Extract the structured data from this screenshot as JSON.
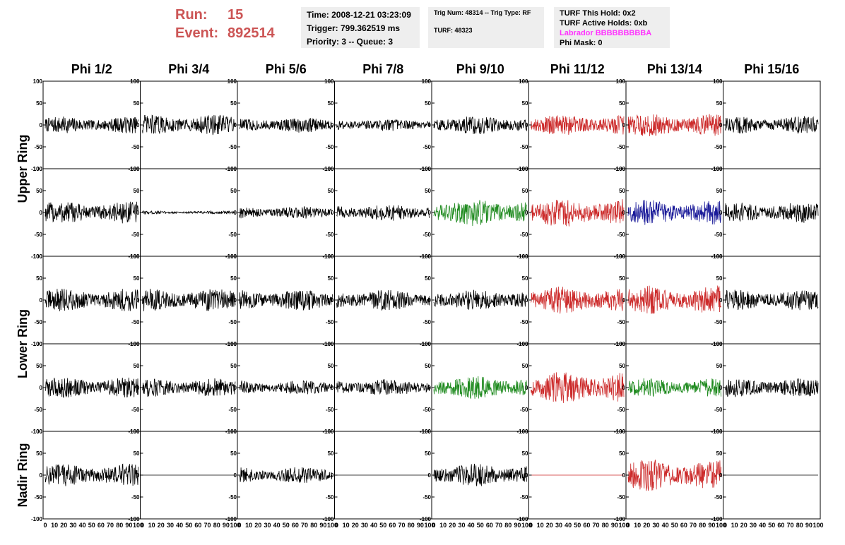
{
  "header": {
    "run_label": "Run:",
    "run_value": "15",
    "event_label": "Event:",
    "event_value": "892514",
    "time": "Time: 2008-12-21 03:23:09",
    "trigger": "Trigger: 799.362519 ms",
    "priority": "Priority: 3 -- Queue: 3",
    "trig_num": "Trig Num: 48314 -- Trig Type: RF",
    "turf": "TURF: 48323",
    "turf_this_hold": "TURF This Hold: 0x2",
    "turf_active_holds": "TURF Active Holds: 0xb",
    "labrador": "Labrador BBBBBBBBBA",
    "phi_mask": "Phi Mask: 0"
  },
  "chart_data": {
    "type": "line",
    "title": "",
    "columns": [
      "Phi 1/2",
      "Phi 3/4",
      "Phi 5/6",
      "Phi 7/8",
      "Phi 9/10",
      "Phi 11/12",
      "Phi 13/14",
      "Phi 15/16"
    ],
    "ring_labels": [
      {
        "text": "Upper Ring",
        "rows": [
          0,
          1
        ]
      },
      {
        "text": "Lower Ring",
        "rows": [
          2,
          3
        ]
      },
      {
        "text": "Nadir Ring",
        "rows": [
          4,
          4
        ]
      }
    ],
    "xlim": [
      0,
      100
    ],
    "ylim": [
      -100,
      100
    ],
    "x_tick_labels": [
      "0",
      "10",
      "20",
      "30",
      "40",
      "50",
      "60",
      "70",
      "80",
      "90",
      "100"
    ],
    "y_tick_labels": [
      "100",
      "50",
      "0",
      "-50",
      "-100"
    ],
    "colors": {
      "normal": "#000000",
      "red": "#cc2a2a",
      "green": "#1e8a1e",
      "blue": "#1a1a99"
    },
    "samples_per_trace": 250,
    "panels": [
      {
        "row": 0,
        "col": 0,
        "color": "normal",
        "amplitude": 16
      },
      {
        "row": 0,
        "col": 1,
        "color": "normal",
        "amplitude": 20
      },
      {
        "row": 0,
        "col": 2,
        "color": "normal",
        "amplitude": 15
      },
      {
        "row": 0,
        "col": 3,
        "color": "normal",
        "amplitude": 12
      },
      {
        "row": 0,
        "col": 4,
        "color": "normal",
        "amplitude": 18
      },
      {
        "row": 0,
        "col": 5,
        "color": "red",
        "amplitude": 20
      },
      {
        "row": 0,
        "col": 6,
        "color": "red",
        "amplitude": 22
      },
      {
        "row": 0,
        "col": 7,
        "color": "normal",
        "amplitude": 17
      },
      {
        "row": 1,
        "col": 0,
        "color": "normal",
        "amplitude": 22
      },
      {
        "row": 1,
        "col": 1,
        "color": "normal",
        "amplitude": 3
      },
      {
        "row": 1,
        "col": 2,
        "color": "normal",
        "amplitude": 12
      },
      {
        "row": 1,
        "col": 3,
        "color": "normal",
        "amplitude": 16
      },
      {
        "row": 1,
        "col": 4,
        "color": "green",
        "amplitude": 26
      },
      {
        "row": 1,
        "col": 5,
        "color": "red",
        "amplitude": 28
      },
      {
        "row": 1,
        "col": 6,
        "color": "blue",
        "amplitude": 24
      },
      {
        "row": 1,
        "col": 7,
        "color": "normal",
        "amplitude": 20
      },
      {
        "row": 2,
        "col": 0,
        "color": "normal",
        "amplitude": 22
      },
      {
        "row": 2,
        "col": 1,
        "color": "normal",
        "amplitude": 22
      },
      {
        "row": 2,
        "col": 2,
        "color": "normal",
        "amplitude": 20
      },
      {
        "row": 2,
        "col": 3,
        "color": "normal",
        "amplitude": 20
      },
      {
        "row": 2,
        "col": 4,
        "color": "normal",
        "amplitude": 20
      },
      {
        "row": 2,
        "col": 5,
        "color": "red",
        "amplitude": 26
      },
      {
        "row": 2,
        "col": 6,
        "color": "red",
        "amplitude": 28
      },
      {
        "row": 2,
        "col": 7,
        "color": "normal",
        "amplitude": 20
      },
      {
        "row": 3,
        "col": 0,
        "color": "normal",
        "amplitude": 20
      },
      {
        "row": 3,
        "col": 1,
        "color": "normal",
        "amplitude": 18
      },
      {
        "row": 3,
        "col": 2,
        "color": "normal",
        "amplitude": 14
      },
      {
        "row": 3,
        "col": 3,
        "color": "normal",
        "amplitude": 16
      },
      {
        "row": 3,
        "col": 4,
        "color": "green",
        "amplitude": 22
      },
      {
        "row": 3,
        "col": 5,
        "color": "red",
        "amplitude": 30
      },
      {
        "row": 3,
        "col": 6,
        "color": "green",
        "amplitude": 18
      },
      {
        "row": 3,
        "col": 7,
        "color": "normal",
        "amplitude": 18
      },
      {
        "row": 4,
        "col": 0,
        "color": "normal",
        "amplitude": 22
      },
      {
        "row": 4,
        "col": 1,
        "color": "normal",
        "amplitude": 0
      },
      {
        "row": 4,
        "col": 2,
        "color": "normal",
        "amplitude": 16
      },
      {
        "row": 4,
        "col": 3,
        "color": "normal",
        "amplitude": 0
      },
      {
        "row": 4,
        "col": 4,
        "color": "normal",
        "amplitude": 22
      },
      {
        "row": 4,
        "col": 5,
        "color": "red",
        "amplitude": 0
      },
      {
        "row": 4,
        "col": 6,
        "color": "red",
        "amplitude": 30
      },
      {
        "row": 4,
        "col": 7,
        "color": "normal",
        "amplitude": 0
      }
    ]
  }
}
